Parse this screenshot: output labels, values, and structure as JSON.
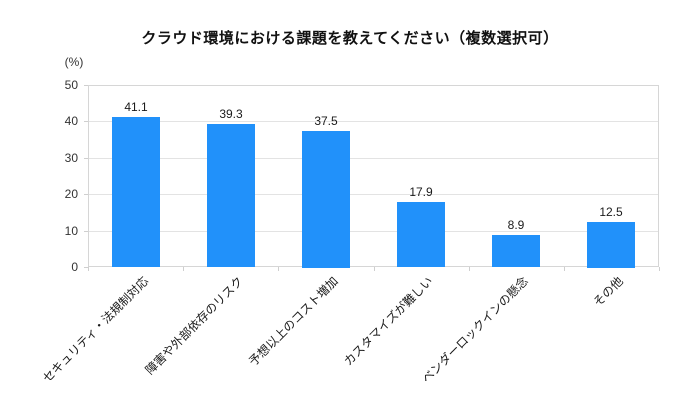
{
  "title": "クラウド環境における課題を教えてください（複数選択可）",
  "chart_data": {
    "type": "bar",
    "title": "クラウド環境における課題を教えてください（複数選択可）",
    "unit_label": "(%)",
    "categories": [
      "セキュリティ・法規制対応",
      "障害や外部依存のリスク",
      "予想以上のコスト増加",
      "カスタマイズが難しい",
      "ベンダーロックインの懸念",
      "その他"
    ],
    "values": [
      41.1,
      39.3,
      37.5,
      17.9,
      8.9,
      12.5
    ],
    "value_labels": [
      "41.1",
      "39.3",
      "37.5",
      "17.9",
      "8.9",
      "12.5"
    ],
    "xlabel": "",
    "ylabel": "(%)",
    "ylim": [
      0,
      50
    ],
    "yticks": [
      0,
      10,
      20,
      30,
      40,
      50
    ],
    "grid": true,
    "legend": "none",
    "colors": {
      "bar": "#2191fa",
      "gridline": "#e3e3e3",
      "axis": "#d6d6d6",
      "tick_mark": "#cfcfcf",
      "text": "#1a1a1a",
      "background": "#ffffff"
    }
  }
}
